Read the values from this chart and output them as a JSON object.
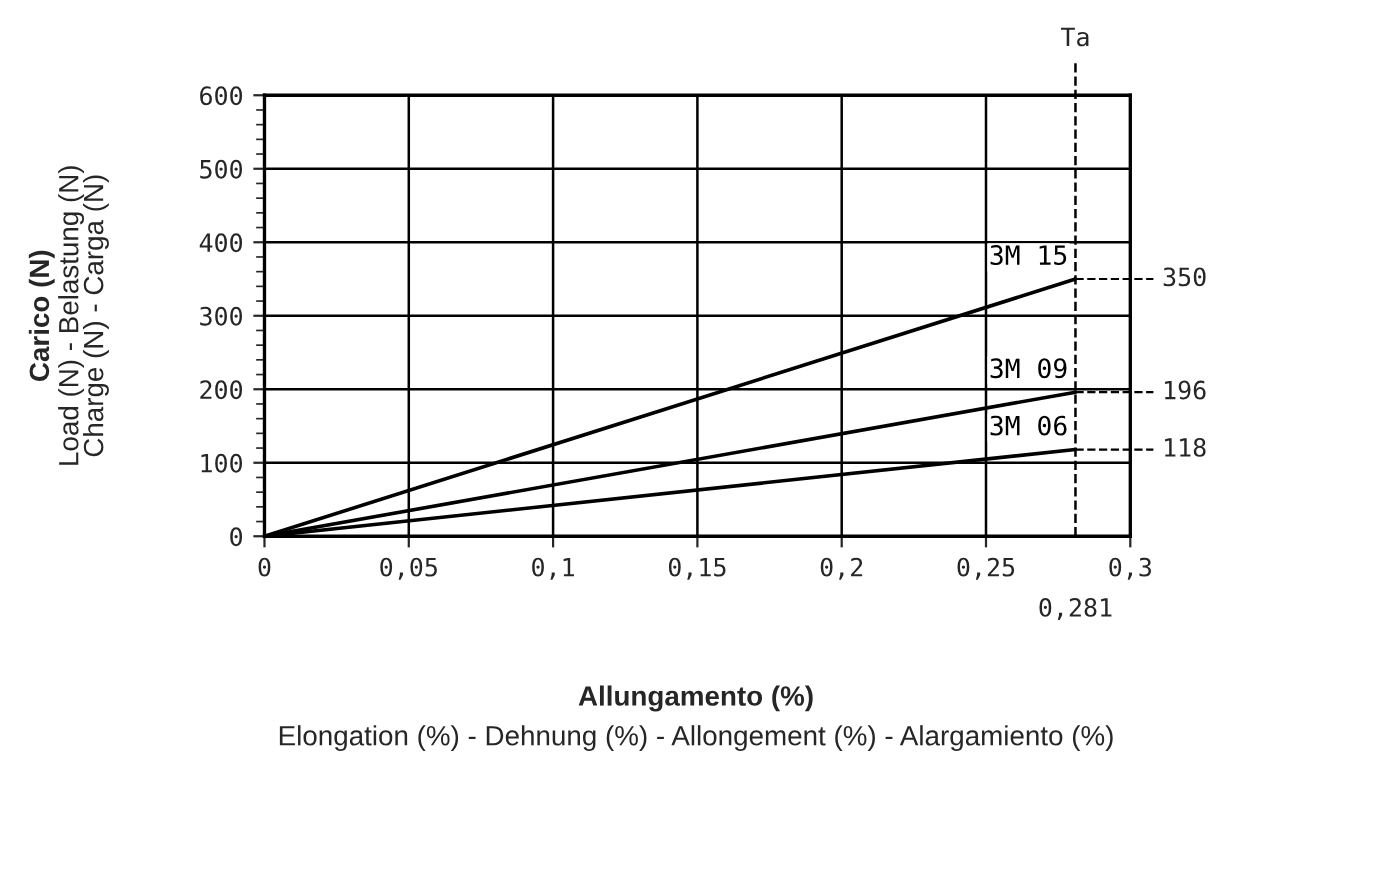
{
  "chart_data": {
    "type": "line",
    "xlabel": "Allungamento (%)\nElongation (%) - Dehnung (%) - Allongement (%) - Alargamiento (%)",
    "ylabel": "Carico (N)\nLoad (N) - Belastung (N)\nCharge (N) - Carga (N)",
    "x": [
      0,
      0.281
    ],
    "series": [
      {
        "name": "3M 15",
        "color": "#000000",
        "values": [
          0,
          350
        ],
        "value_labels": [
          null,
          "350"
        ]
      },
      {
        "name": "3M 09",
        "color": "#000000",
        "values": [
          0,
          196
        ],
        "value_labels": [
          null,
          "196"
        ]
      },
      {
        "name": "3M 06",
        "color": "#000000",
        "values": [
          0,
          118
        ],
        "value_labels": [
          null,
          "118"
        ]
      }
    ],
    "xlim": [
      0,
      0.3
    ],
    "ylim": [
      0,
      600
    ],
    "xticks": [
      {
        "value": 0,
        "label": "0"
      },
      {
        "value": 0.05,
        "label": "0,05"
      },
      {
        "value": 0.1,
        "label": "0,1"
      },
      {
        "value": 0.15,
        "label": "0,15"
      },
      {
        "value": 0.2,
        "label": "0,2"
      },
      {
        "value": 0.25,
        "label": "0,25"
      },
      {
        "value": 0.3,
        "label": "0,3"
      }
    ],
    "annotations": [
      {
        "text": "0,281",
        "x": 0.281,
        "y": 0
      }
    ],
    "yticks": [
      0,
      100,
      200,
      300,
      400,
      500,
      600
    ],
    "ref_lines": [
      {
        "axis": "x",
        "value": 0.281,
        "label": "Ta",
        "line_style": "dashed",
        "color": "#000000"
      }
    ],
    "grid": true,
    "legend": false,
    "marker": "none",
    "line_style": "solid"
  }
}
